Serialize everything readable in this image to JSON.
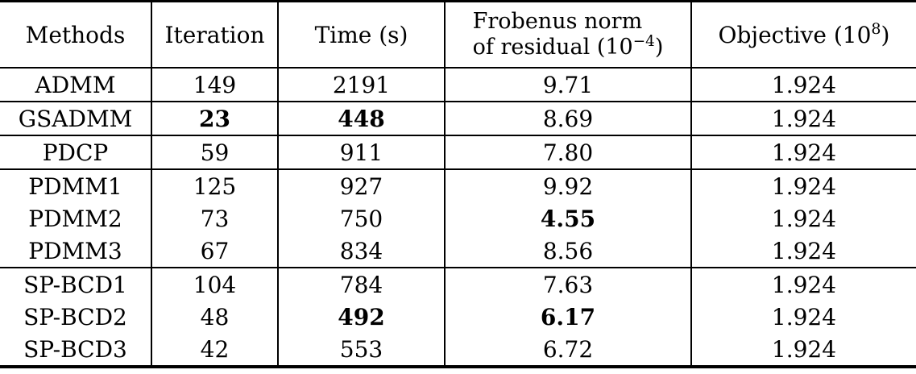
{
  "table": {
    "headers": {
      "methods": "Methods",
      "iteration": "Iteration",
      "time": "Time (s)",
      "residual_line1": "Frobenus norm",
      "residual_line2_pre": "of residual (10",
      "residual_sup": "−4",
      "residual_post": ")",
      "objective_pre": "Objective (10",
      "objective_sup": "8",
      "objective_post": ")"
    },
    "rows": [
      {
        "method": "ADMM",
        "iteration": "149",
        "time": "2191",
        "residual": "9.71",
        "objective": "1.924"
      },
      {
        "method": "GSADMM",
        "iteration": "23",
        "time": "448",
        "residual": "8.69",
        "objective": "1.924"
      },
      {
        "method": "PDCP",
        "iteration": "59",
        "time": "911",
        "residual": "7.80",
        "objective": "1.924"
      },
      {
        "method": "PDMM1",
        "iteration": "125",
        "time": "927",
        "residual": "9.92",
        "objective": "1.924"
      },
      {
        "method": "PDMM2",
        "iteration": "73",
        "time": "750",
        "residual": "4.55",
        "objective": "1.924"
      },
      {
        "method": "PDMM3",
        "iteration": "67",
        "time": "834",
        "residual": "8.56",
        "objective": "1.924"
      },
      {
        "method": "SP-BCD1",
        "iteration": "104",
        "time": "784",
        "residual": "7.63",
        "objective": "1.924"
      },
      {
        "method": "SP-BCD2",
        "iteration": "48",
        "time": "492",
        "residual": "6.17",
        "objective": "1.924"
      },
      {
        "method": "SP-BCD3",
        "iteration": "42",
        "time": "553",
        "residual": "6.72",
        "objective": "1.924"
      }
    ],
    "bold_cells": [
      {
        "row_index": 1,
        "cells": [
          "iteration",
          "time"
        ]
      },
      {
        "row_index": 4,
        "cells": [
          "residual"
        ]
      },
      {
        "row_index": 7,
        "cells": [
          "time",
          "residual"
        ]
      }
    ],
    "colors": {
      "text": "#000000",
      "border": "#000000",
      "background": "#ffffff"
    }
  }
}
